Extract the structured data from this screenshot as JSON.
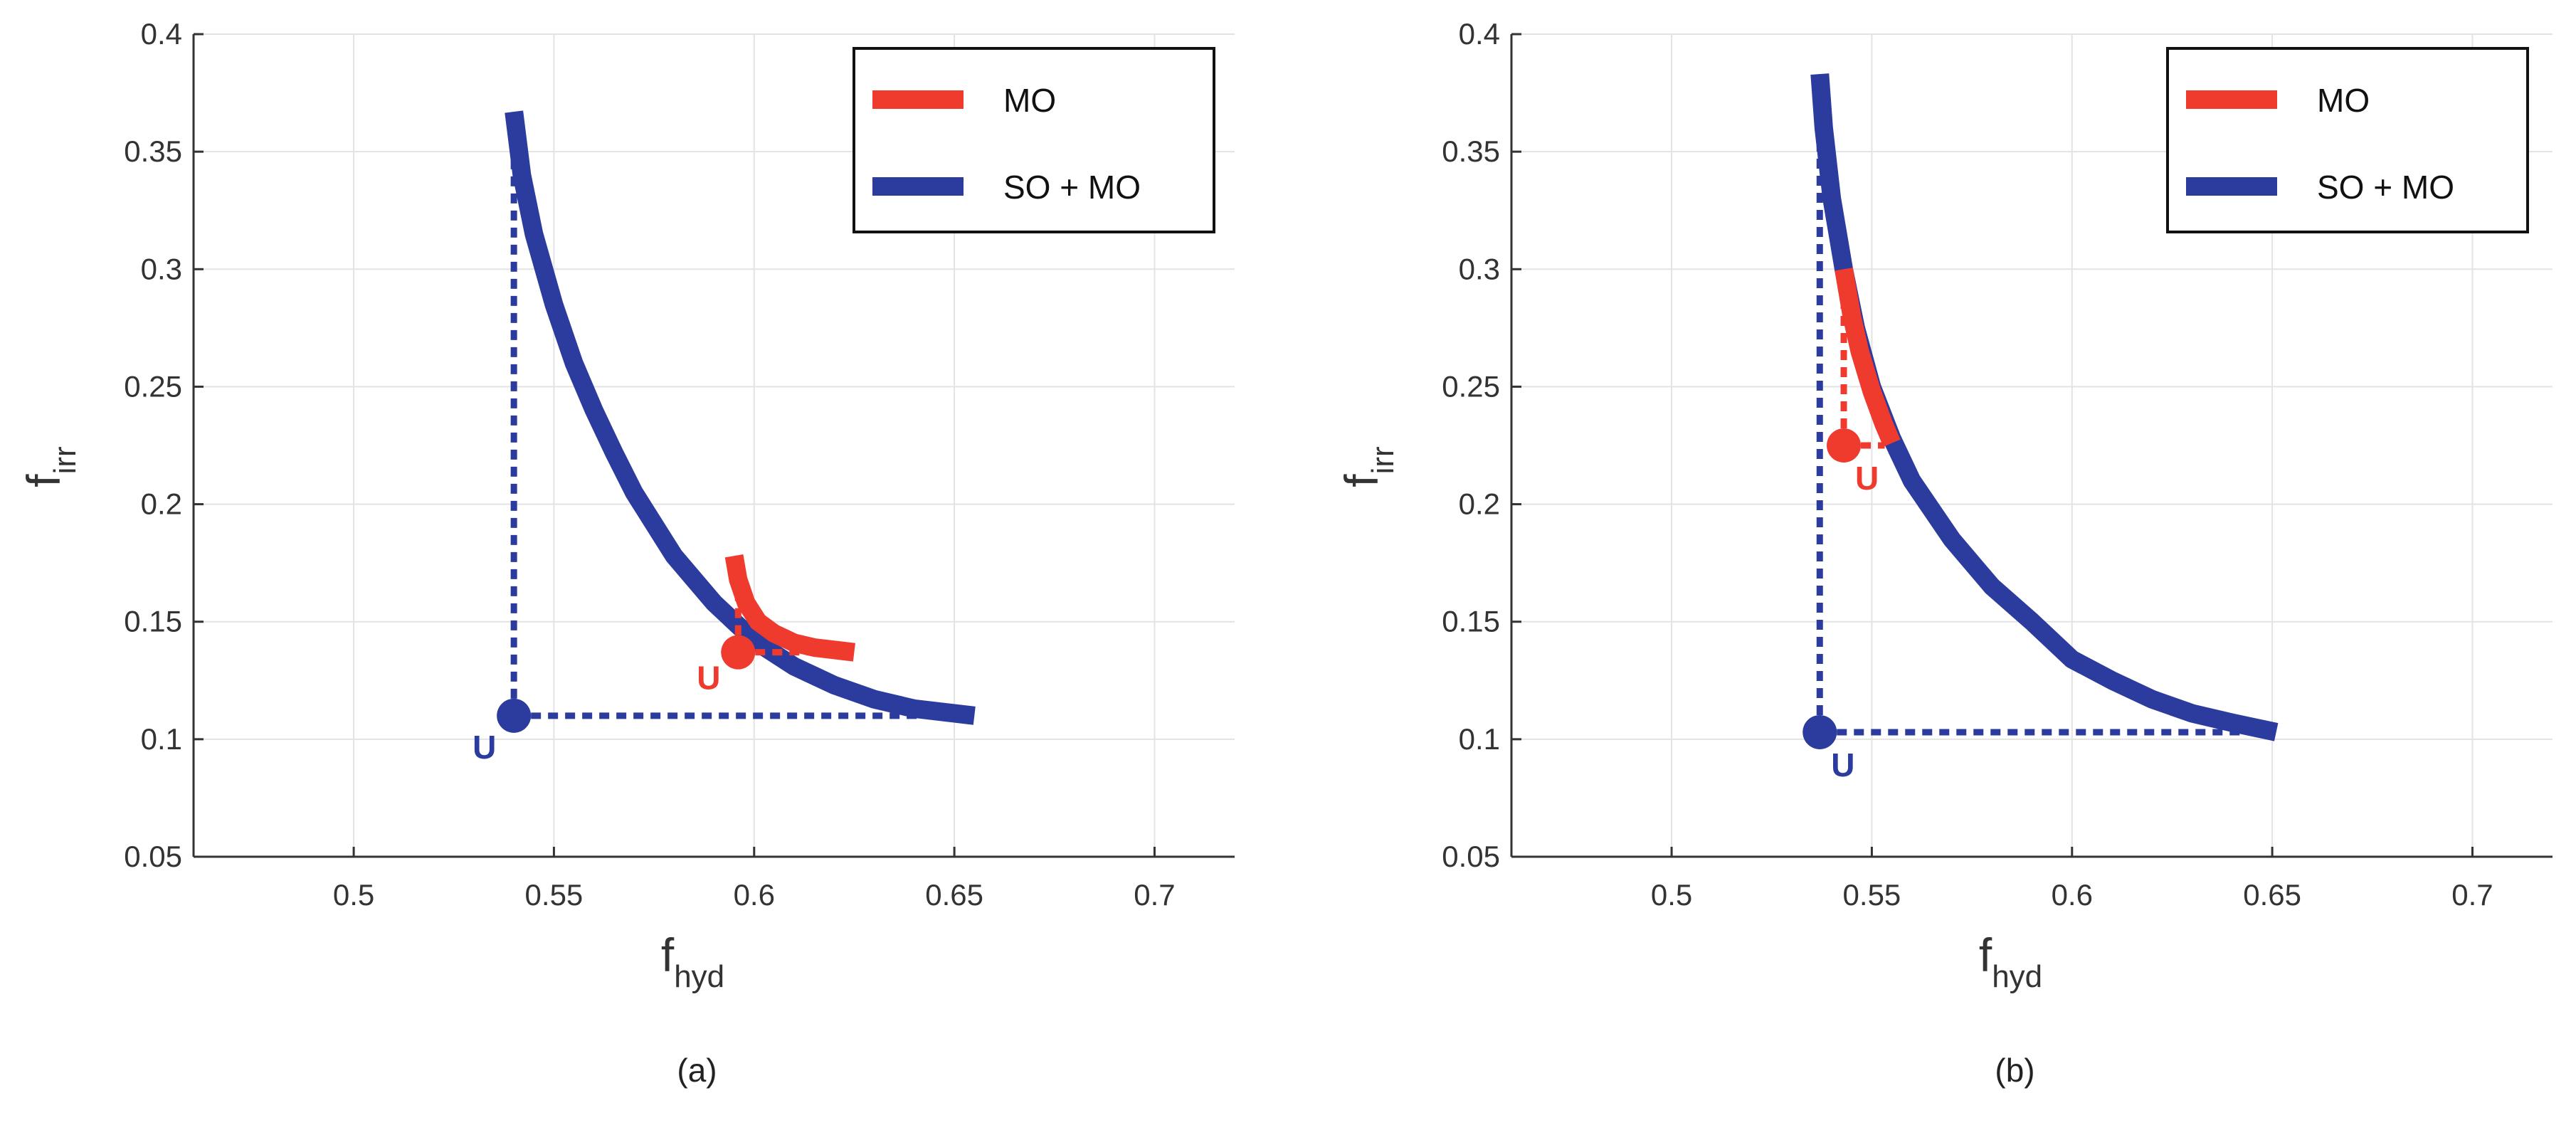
{
  "chart_data": [
    {
      "type": "line",
      "caption": "(a)",
      "xlabel": "f",
      "xlabel_sub": "hyd",
      "ylabel": "f",
      "ylabel_sub": "irr",
      "xlim": [
        0.46,
        0.72
      ],
      "ylim": [
        0.05,
        0.4
      ],
      "xticks": [
        "0.5",
        "0.55",
        "0.6",
        "0.65",
        "0.7"
      ],
      "yticks": [
        "0.05",
        "0.1",
        "0.15",
        "0.2",
        "0.25",
        "0.3",
        "0.35",
        "0.4"
      ],
      "grid": true,
      "legend_position": "top-right",
      "series": [
        {
          "name": "MO",
          "color": "#EE3B2E",
          "points": [
            [
              0.595,
              0.178
            ],
            [
              0.596,
              0.168
            ],
            [
              0.598,
              0.158
            ],
            [
              0.601,
              0.15
            ],
            [
              0.605,
              0.145
            ],
            [
              0.61,
              0.141
            ],
            [
              0.615,
              0.139
            ],
            [
              0.62,
              0.138
            ],
            [
              0.625,
              0.137
            ]
          ],
          "utopia": {
            "x": 0.596,
            "y": 0.137,
            "label": "U"
          }
        },
        {
          "name": "SO + MO",
          "color": "#2B3C9E",
          "points": [
            [
              0.54,
              0.367
            ],
            [
              0.542,
              0.34
            ],
            [
              0.545,
              0.315
            ],
            [
              0.55,
              0.285
            ],
            [
              0.555,
              0.26
            ],
            [
              0.56,
              0.24
            ],
            [
              0.565,
              0.222
            ],
            [
              0.57,
              0.205
            ],
            [
              0.58,
              0.178
            ],
            [
              0.59,
              0.158
            ],
            [
              0.6,
              0.142
            ],
            [
              0.61,
              0.131
            ],
            [
              0.62,
              0.123
            ],
            [
              0.63,
              0.117
            ],
            [
              0.64,
              0.113
            ],
            [
              0.655,
              0.11
            ]
          ],
          "utopia": {
            "x": 0.54,
            "y": 0.11,
            "label": "U"
          }
        }
      ]
    },
    {
      "type": "line",
      "caption": "(b)",
      "xlabel": "f",
      "xlabel_sub": "hyd",
      "ylabel": "f",
      "ylabel_sub": "irr",
      "xlim": [
        0.46,
        0.72
      ],
      "ylim": [
        0.05,
        0.4
      ],
      "xticks": [
        "0.5",
        "0.55",
        "0.6",
        "0.65",
        "0.7"
      ],
      "yticks": [
        "0.05",
        "0.1",
        "0.15",
        "0.2",
        "0.25",
        "0.3",
        "0.35",
        "0.4"
      ],
      "grid": true,
      "legend_position": "top-right",
      "series": [
        {
          "name": "MO",
          "color": "#EE3B2E",
          "points": [
            [
              0.543,
              0.3
            ],
            [
              0.545,
              0.28
            ],
            [
              0.547,
              0.265
            ],
            [
              0.55,
              0.248
            ],
            [
              0.553,
              0.234
            ],
            [
              0.555,
              0.226
            ]
          ],
          "utopia": {
            "x": 0.543,
            "y": 0.225,
            "label": "U"
          }
        },
        {
          "name": "SO + MO",
          "color": "#2B3C9E",
          "points": [
            [
              0.537,
              0.383
            ],
            [
              0.538,
              0.36
            ],
            [
              0.54,
              0.33
            ],
            [
              0.543,
              0.3
            ],
            [
              0.546,
              0.275
            ],
            [
              0.55,
              0.25
            ],
            [
              0.555,
              0.228
            ],
            [
              0.56,
              0.21
            ],
            [
              0.57,
              0.185
            ],
            [
              0.58,
              0.165
            ],
            [
              0.59,
              0.15
            ],
            [
              0.6,
              0.134
            ],
            [
              0.61,
              0.125
            ],
            [
              0.62,
              0.117
            ],
            [
              0.63,
              0.111
            ],
            [
              0.64,
              0.107
            ],
            [
              0.651,
              0.103
            ]
          ],
          "utopia": {
            "x": 0.537,
            "y": 0.103,
            "label": "U"
          }
        }
      ]
    }
  ]
}
